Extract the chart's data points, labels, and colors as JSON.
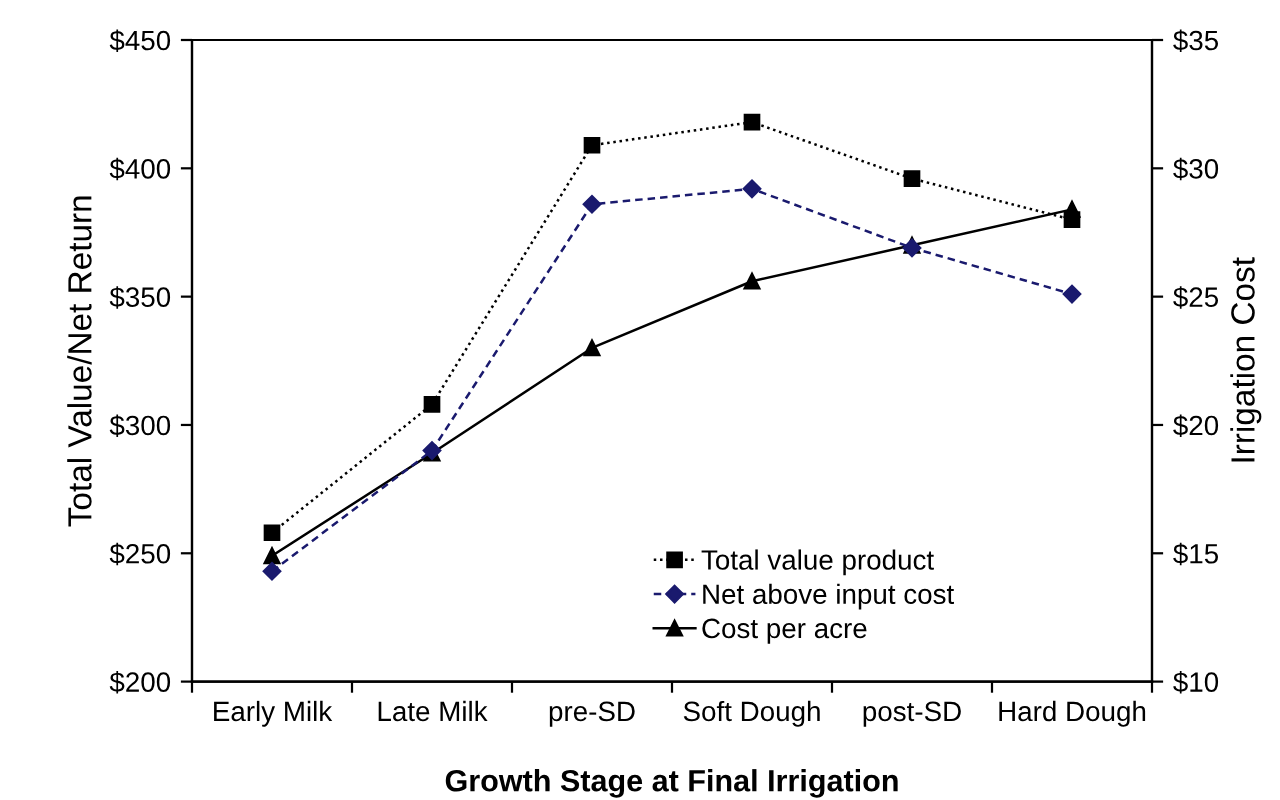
{
  "chart_data": {
    "type": "line",
    "xlabel": "Growth Stage at Final Irrigation",
    "ylabel": "Total Value/Net Return",
    "y2label": "Irrigation Cost",
    "categories": [
      "Early Milk",
      "Late Milk",
      "pre-SD",
      "Soft Dough",
      "post-SD",
      "Hard Dough"
    ],
    "series": [
      {
        "name": "Total value product",
        "color": "#000000",
        "marker": "square",
        "line_style": "dotted",
        "values": [
          258,
          308,
          409,
          418,
          396,
          380
        ]
      },
      {
        "name": "Net above input cost",
        "color": "#1a1a6e",
        "marker": "diamond",
        "line_style": "dashed",
        "values": [
          243,
          290,
          386,
          392,
          369,
          351
        ]
      },
      {
        "name": "Cost per acre",
        "color": "#000000",
        "marker": "triangle",
        "line_style": "solid",
        "axis": "y2",
        "values": [
          14.9,
          18.9,
          23.0,
          25.6,
          27.0,
          28.4
        ]
      }
    ],
    "ylim": [
      200,
      450
    ],
    "yticks": [
      {
        "value": 200,
        "label": "$200"
      },
      {
        "value": 250,
        "label": "$250"
      },
      {
        "value": 300,
        "label": "$300"
      },
      {
        "value": 350,
        "label": "$350"
      },
      {
        "value": 400,
        "label": "$400"
      },
      {
        "value": 450,
        "label": "$450"
      }
    ],
    "y2lim": [
      10,
      35
    ],
    "y2ticks": [
      {
        "value": 10,
        "label": "$10"
      },
      {
        "value": 15,
        "label": "$15"
      },
      {
        "value": 20,
        "label": "$20"
      },
      {
        "value": 25,
        "label": "$25"
      },
      {
        "value": 30,
        "label": "$30"
      },
      {
        "value": 35,
        "label": "$35"
      }
    ],
    "grid": false,
    "legend": "bottom right"
  }
}
